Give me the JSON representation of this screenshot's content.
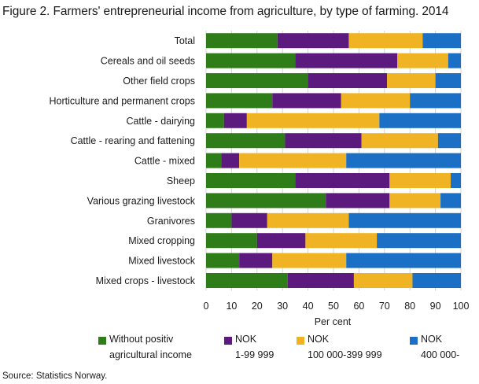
{
  "title": "Figure 2. Farmers' entrepreneurial income from agriculture, by type of farming. 2014",
  "source": "Source: Statistics Norway.",
  "chart_data": {
    "type": "bar",
    "orientation": "horizontal",
    "stacked": true,
    "xlabel": "Per cent",
    "xlim": [
      0,
      100
    ],
    "xticks": [
      0,
      10,
      20,
      30,
      40,
      50,
      60,
      70,
      80,
      90,
      100
    ],
    "grid": true,
    "legend_position": "bottom",
    "categories": [
      "Total",
      "Cereals and oil seeds",
      "Other field crops",
      "Horticulture and permanent crops",
      "Cattle - dairying",
      "Cattle - rearing and fattening",
      "Cattle - mixed",
      "Sheep",
      "Various grazing livestock",
      "Granivores",
      "Mixed cropping",
      "Mixed livestock",
      "Mixed crops - livestock"
    ],
    "series": [
      {
        "name": "Without positiv agricultural income",
        "legend_lines": [
          "Without positiv",
          "agricultural income"
        ],
        "color": "#2e7d18",
        "values": [
          28,
          35,
          40,
          26,
          7,
          31,
          6,
          35,
          47,
          10,
          20,
          13,
          32
        ]
      },
      {
        "name": "NOK 1-99 999",
        "legend_lines": [
          "NOK",
          "1-99 999"
        ],
        "color": "#5c1a7e",
        "values": [
          28,
          40,
          31,
          27,
          9,
          30,
          7,
          37,
          25,
          14,
          19,
          13,
          26
        ]
      },
      {
        "name": "NOK 100 000-399 999",
        "legend_lines": [
          "NOK",
          "100 000-399 999"
        ],
        "color": "#f0b323",
        "values": [
          29,
          20,
          19,
          27,
          52,
          30,
          42,
          24,
          20,
          32,
          28,
          29,
          23
        ]
      },
      {
        "name": "NOK 400 000-",
        "legend_lines": [
          "NOK",
          "400 000-"
        ],
        "color": "#1b6fc4",
        "values": [
          15,
          5,
          10,
          20,
          32,
          9,
          45,
          4,
          8,
          44,
          33,
          45,
          19
        ]
      }
    ]
  }
}
